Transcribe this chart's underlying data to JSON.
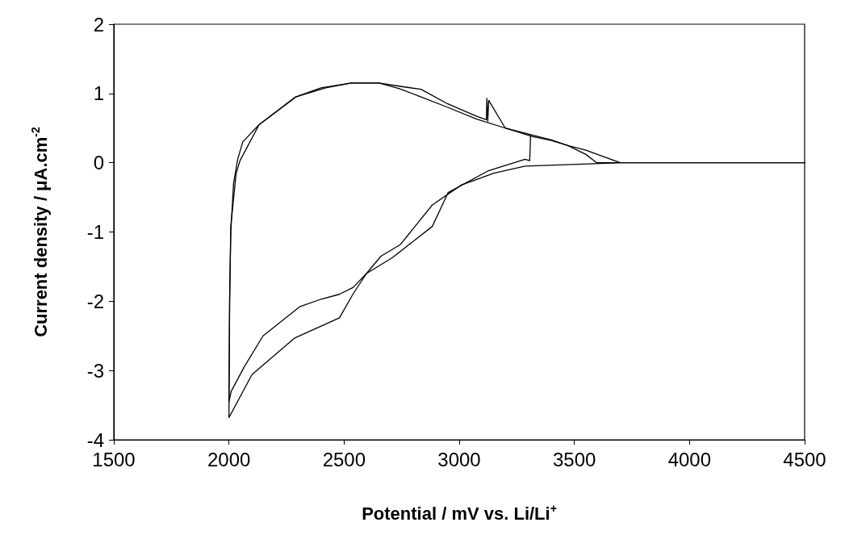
{
  "chart_data": {
    "type": "line",
    "xlabel": "Potential / mV vs. Li/Li$^{+}$",
    "ylabel": "Current density / μA.cm$^{-2}$",
    "xlim": [
      1500,
      4500
    ],
    "xticks": [
      1500,
      2000,
      2500,
      3000,
      3500,
      4000,
      4500
    ],
    "ylim": [
      -4,
      2
    ],
    "yticks": [
      -4,
      -3,
      -2,
      -1,
      0,
      1,
      2
    ],
    "grid": false,
    "marker": "none",
    "line_style": "solid",
    "series": [
      {
        "color": "#000000",
        "x": [
          3310,
          3306,
          3286,
          3124,
          2952,
          2883,
          2710,
          2597,
          2538,
          2480,
          2286,
          2100,
          2000,
          2003,
          2008,
          2020,
          2038,
          2060,
          2131,
          2290,
          2420,
          2531,
          2652,
          2750,
          2834,
          2950,
          3076,
          3118,
          3120,
          3124,
          3128,
          3200,
          3317,
          3400,
          3470,
          3550,
          3597,
          3700,
          4500
        ],
        "values": [
          0.4,
          0.03,
          0.05,
          -0.12,
          -0.43,
          -0.92,
          -1.37,
          -1.6,
          -1.9,
          -2.24,
          -2.53,
          -3.06,
          -3.68,
          -2,
          -1,
          -0.3,
          0.05,
          0.3,
          0.55,
          0.95,
          1.08,
          1.15,
          1.15,
          1.1,
          1.06,
          0.85,
          0.67,
          0.62,
          0.93,
          0.6,
          0.9,
          0.5,
          0.38,
          0.32,
          0.25,
          0.12,
          0,
          0,
          0
        ]
      },
      {
        "color": "#000000",
        "x": [
          4500,
          3700,
          3286,
          3150,
          3045,
          3010,
          2883,
          2745,
          2660,
          2597,
          2540,
          2479,
          2400,
          2307,
          2148,
          2066,
          2010,
          2000,
          2003,
          2008,
          2031,
          2048,
          2131,
          2290,
          2400,
          2531,
          2652,
          2740,
          2834,
          2950,
          3076,
          3200,
          3317,
          3400,
          3469,
          3550,
          3617,
          3700
        ],
        "values": [
          0,
          0,
          -0.05,
          -0.15,
          -0.28,
          -0.32,
          -0.61,
          -1.18,
          -1.35,
          -1.6,
          -1.8,
          -1.9,
          -1.97,
          -2.08,
          -2.5,
          -2.95,
          -3.3,
          -3.45,
          -2,
          -0.92,
          -0.16,
          0.03,
          0.55,
          0.95,
          1.08,
          1.15,
          1.15,
          1.07,
          0.95,
          0.8,
          0.63,
          0.5,
          0.4,
          0.33,
          0.25,
          0.18,
          0.1,
          0
        ]
      }
    ]
  }
}
